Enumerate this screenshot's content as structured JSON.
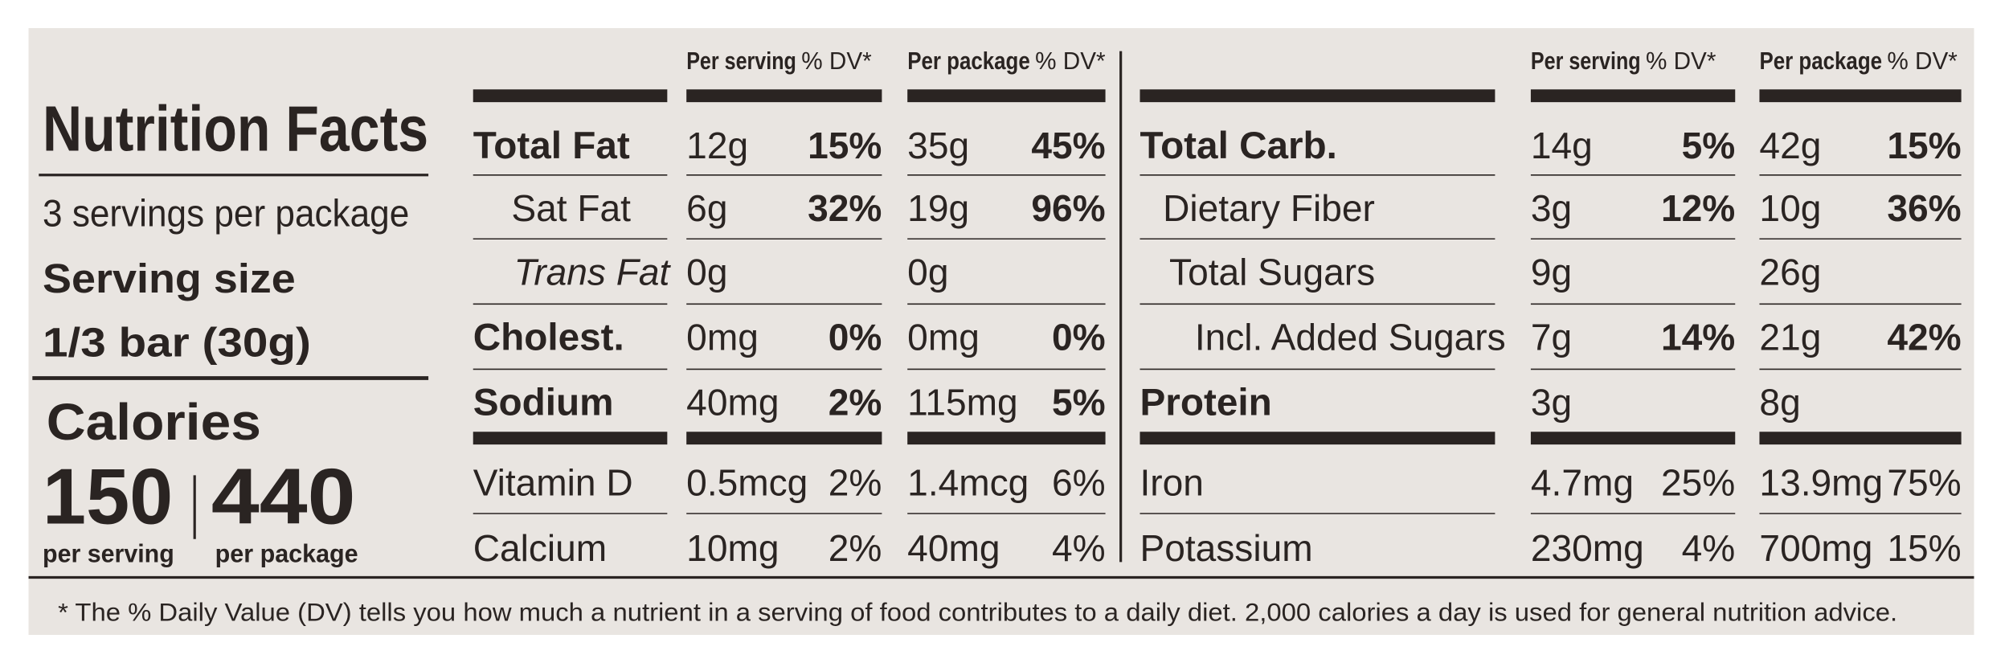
{
  "title": "Nutrition Facts",
  "servings_per_package": "3 servings per package",
  "serving_size_label": "Serving size",
  "serving_size": "1/3 bar (30g)",
  "calories_label": "Calories",
  "calories": [
    {
      "amount": "150",
      "label": "per serving"
    },
    {
      "amount": "440",
      "label": "per package"
    }
  ],
  "left_table": {
    "headers": [
      {
        "bold": "Per serving",
        "light": "% DV*"
      },
      {
        "bold": "Per package",
        "light": "% DV*"
      }
    ],
    "rows": [
      [
        "Total Fat",
        "12g",
        "15%",
        "35g",
        "45%"
      ],
      [
        "Sat Fat",
        "6g",
        "32%",
        "19g",
        "96%"
      ],
      [
        "Trans Fat",
        "0g",
        null,
        "0g",
        null
      ],
      [
        "Cholest.",
        "0mg",
        "0%",
        "0mg",
        "0%"
      ],
      [
        "Sodium",
        "40mg",
        "2%",
        "115mg",
        "5%"
      ],
      [
        "Vitamin D",
        "0.5mcg",
        "2%",
        "1.4mcg",
        "6%"
      ],
      [
        "Calcium",
        "10mg",
        "2%",
        "40mg",
        "4%"
      ]
    ]
  },
  "right_table": {
    "headers": [
      {
        "bold": "Per serving",
        "light": "% DV*"
      },
      {
        "bold": "Per package",
        "light": "% DV*"
      }
    ],
    "rows": [
      [
        "Total Carb.",
        "14g",
        "5%",
        "42g",
        "15%"
      ],
      [
        "Dietary Fiber",
        "3g",
        "12%",
        "10g",
        "36%"
      ],
      [
        "Total Sugars",
        "9g",
        null,
        "26g",
        null
      ],
      [
        "Incl. Added Sugars",
        "7g",
        "14%",
        "21g",
        "42%"
      ],
      [
        "Protein",
        "3g",
        null,
        "8g",
        null
      ],
      [
        "Iron",
        "4.7mg",
        "25%",
        "13.9mg",
        "75%"
      ],
      [
        "Potassium",
        "230mg",
        "4%",
        "700mg",
        "15%"
      ]
    ]
  },
  "footnote": "* The % Daily Value (DV) tells you how much a nutrient in a serving of food contributes to a daily diet. 2,000 calories a day is used for general nutrition advice."
}
